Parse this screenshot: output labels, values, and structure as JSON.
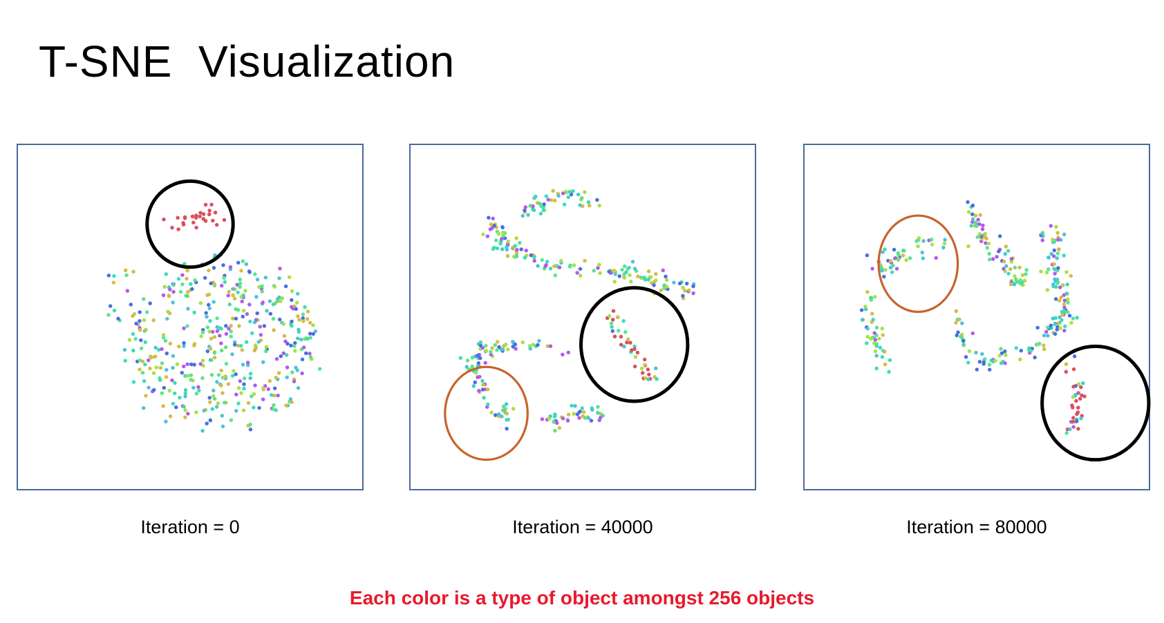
{
  "slide": {
    "title": "T-SNE  Visualization",
    "footnote": "Each color is a type of object amongst 256 objects"
  },
  "colors": {
    "palette": [
      "#59e58c",
      "#a9e045",
      "#4ec3d6",
      "#4b6ee0",
      "#b25bea",
      "#d4bd45",
      "#3ddcb6",
      "#d9505c"
    ],
    "highlight_black": "#000000",
    "highlight_orange": "#c8642c",
    "panel_border": "#4a6a9c",
    "footnote": "#e8192c"
  },
  "chart_data": [
    {
      "type": "scatter",
      "caption": "Iteration = 0",
      "xlim": [
        0,
        100
      ],
      "ylim": [
        0,
        100
      ],
      "highlights": [
        {
          "cx": 50,
          "cy": 77,
          "rx": 12.5,
          "ry": 12.5,
          "color": "black"
        }
      ]
    },
    {
      "type": "scatter",
      "caption": "Iteration = 40000",
      "xlim": [
        0,
        100
      ],
      "ylim": [
        0,
        100
      ],
      "highlights": [
        {
          "cx": 65,
          "cy": 42,
          "rx": 15.5,
          "ry": 16.5,
          "color": "black"
        },
        {
          "cx": 22,
          "cy": 22,
          "rx": 12,
          "ry": 13.5,
          "color": "orange"
        }
      ]
    },
    {
      "type": "scatter",
      "caption": "Iteration = 80000",
      "xlim": [
        0,
        100
      ],
      "ylim": [
        0,
        100
      ],
      "highlights": [
        {
          "cx": 33,
          "cy": 65.5,
          "rx": 11.5,
          "ry": 14,
          "color": "orange"
        },
        {
          "cx": 84.5,
          "cy": 25,
          "rx": 15.5,
          "ry": 16.5,
          "color": "black"
        }
      ]
    }
  ]
}
